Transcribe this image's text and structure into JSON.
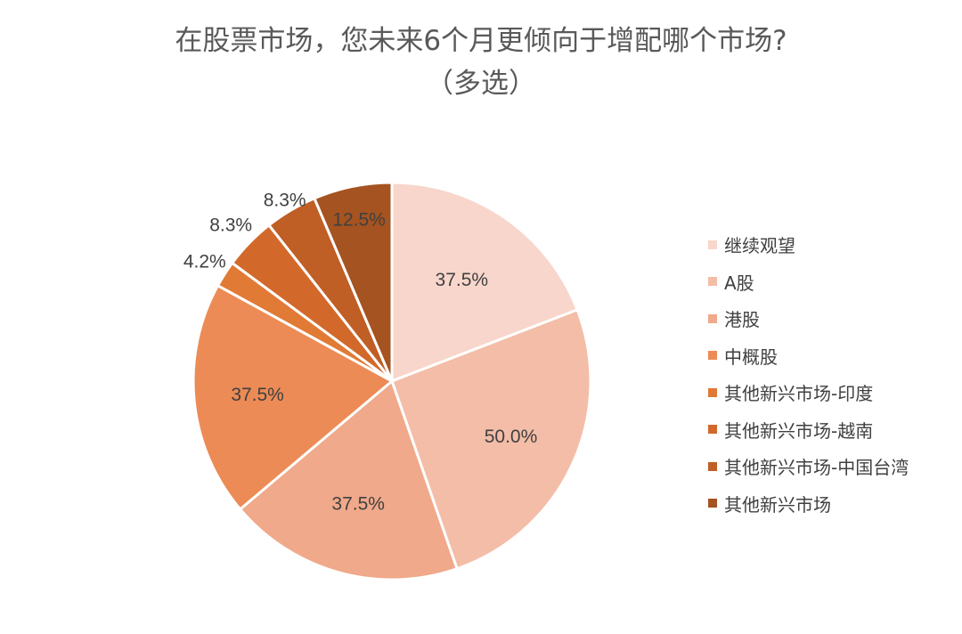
{
  "chart_data": {
    "type": "pie",
    "title": "在股票市场，您未来6个月更倾向于增配哪个市场?",
    "subtitle": "（多选）",
    "slices": [
      {
        "name": "继续观望",
        "value": 37.5,
        "label": "37.5%",
        "color": "#F8D6CB"
      },
      {
        "name": "A股",
        "value": 50.0,
        "label": "50.0%",
        "color": "#F3BDA8"
      },
      {
        "name": "港股",
        "value": 37.5,
        "label": "37.5%",
        "color": "#F0A98A"
      },
      {
        "name": "中概股",
        "value": 37.5,
        "label": "37.5%",
        "color": "#EC8B55"
      },
      {
        "name": "其他新兴市场-印度",
        "value": 4.2,
        "label": "4.2%",
        "color": "#E07A35"
      },
      {
        "name": "其他新兴市场-越南",
        "value": 8.3,
        "label": "8.3%",
        "color": "#D2692A"
      },
      {
        "name": "其他新兴市场-中国台湾",
        "value": 8.3,
        "label": "8.3%",
        "color": "#BF5E25"
      },
      {
        "name": "其他新兴市场",
        "value": 12.5,
        "label": "12.5%",
        "color": "#A55320"
      }
    ],
    "start_angle": "12 o'clock",
    "direction": "clockwise",
    "legend_position": "right"
  }
}
